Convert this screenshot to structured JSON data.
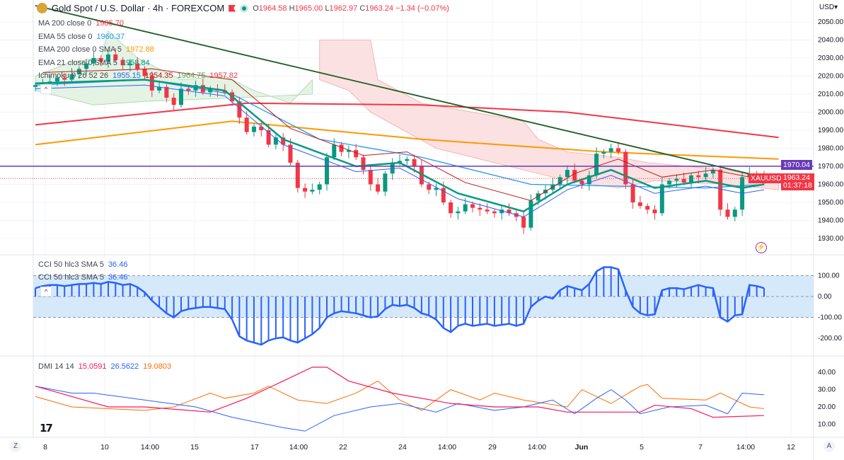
{
  "header": {
    "title": "Gold Spot / U.S. Dollar · 4h · FOREXCOM",
    "open_label": "O",
    "open": "1964.58",
    "high_label": "H",
    "high": "1965.00",
    "low_label": "L",
    "low": "1962.97",
    "close_label": "C",
    "close": "1963.24",
    "change": "−1.34 (−0.07%)",
    "currency": "USD▾"
  },
  "legend": [
    {
      "name": "MA 200 close 0",
      "value": "1985.70",
      "color": "#f23645"
    },
    {
      "name": "EMA 55 close 0",
      "value": "1960.37",
      "color": "#2196f3"
    },
    {
      "name": "EMA 200 close 0 SMA 5",
      "value": "1972.88",
      "color": "#ff9800"
    },
    {
      "name": "EMA 21 close 0 SMA 5",
      "value": "1958.84",
      "color": "#089981"
    },
    {
      "name": "Ichimoku 9 26 52 26",
      "values": [
        "1955.15",
        "1954.35",
        "1964.75",
        "1957.82"
      ],
      "colors": [
        "#2962ff",
        "#b71c1c",
        "#43a047",
        "#f23645"
      ]
    }
  ],
  "cci": {
    "label": "CCI 50 hlc3 SMA 5",
    "value": "36.46",
    "label2": "CCI 50 hlc3 SMA 5",
    "value2": "36.46",
    "color": "#2962ff",
    "band_color": "#d6e9fb",
    "axis": [
      "100.00",
      "0.00",
      "-100.00",
      "-200.00"
    ]
  },
  "dmi": {
    "label": "DMI 14 14",
    "adx": "15.0591",
    "plus": "26.5622",
    "minus": "19.0803",
    "colors": {
      "adx": "#f7175a",
      "plus": "#2962ff",
      "minus": "#ff6d00"
    },
    "axis": [
      "40.00",
      "30.00",
      "20.00",
      "10.00"
    ]
  },
  "price_axis": [
    "2050.00",
    "2040.00",
    "2030.00",
    "2020.00",
    "2010.00",
    "2000.00",
    "1990.00",
    "1980.00",
    "1970.00",
    "1960.00",
    "1950.00",
    "1940.00",
    "1930.00"
  ],
  "tags": {
    "hline": "1970.04",
    "hline_color": "#673ab7",
    "symbol": "XAUUSD",
    "last": "1963.24",
    "countdown": "01:37:18",
    "up_color": "#089981",
    "down_color": "#f23645"
  },
  "x_axis": [
    "8",
    "10",
    "14:00",
    "15",
    "17",
    "14:00",
    "22",
    "24",
    "14:00",
    "29",
    "14:00",
    "Jun",
    "5",
    "7",
    "14:00",
    "12"
  ],
  "corner": {
    "left": "Z",
    "right": "A"
  },
  "chart_data": {
    "type": "candlestick",
    "timeframe": "4h",
    "hline": 1970.04,
    "ylim": [
      1925,
      2055
    ],
    "close": [
      2015,
      2016,
      2017,
      2019,
      2018,
      2021,
      2024,
      2027,
      2030,
      2028,
      2032,
      2029,
      2026,
      2027,
      2024,
      2020,
      2012,
      2014,
      2008,
      2004,
      2013,
      2012,
      2015,
      2011,
      2013,
      2012,
      2011,
      2006,
      1997,
      1989,
      1992,
      1990,
      1982,
      1986,
      1982,
      1972,
      1958,
      1956,
      1957,
      1960,
      1975,
      1982,
      1978,
      1979,
      1975,
      1968,
      1960,
      1956,
      1966,
      1972,
      1973,
      1974,
      1970,
      1960,
      1957,
      1958,
      1950,
      1944,
      1945,
      1949,
      1947,
      1946,
      1945,
      1944,
      1946,
      1944,
      1942,
      1936,
      1951,
      1955,
      1957,
      1960,
      1964,
      1968,
      1962,
      1960,
      1965,
      1977,
      1978,
      1980,
      1978,
      1960,
      1950,
      1948,
      1946,
      1944,
      1960,
      1962,
      1963,
      1961,
      1965,
      1964,
      1966,
      1968,
      1946,
      1942,
      1946,
      1964,
      1966,
      1965,
      1963.24
    ],
    "ma200": [
      [
        0,
        1993
      ],
      [
        29,
        2005
      ],
      [
        53,
        2004
      ],
      [
        73,
        2000
      ],
      [
        102,
        1986
      ]
    ],
    "ema200": [
      [
        0,
        1982
      ],
      [
        27,
        1995
      ],
      [
        53,
        1985
      ],
      [
        78,
        1978
      ],
      [
        102,
        1974
      ]
    ],
    "ema55": [
      [
        0,
        2015
      ],
      [
        15,
        2018
      ],
      [
        27,
        2010
      ],
      [
        39,
        1985
      ],
      [
        53,
        1975
      ],
      [
        68,
        1960
      ],
      [
        92,
        1958
      ],
      [
        100,
        1960
      ]
    ],
    "ema21": [
      [
        0,
        2016
      ],
      [
        15,
        2018
      ],
      [
        26,
        2012
      ],
      [
        34,
        1985
      ],
      [
        44,
        1970
      ],
      [
        50,
        1972
      ],
      [
        58,
        1955
      ],
      [
        67,
        1945
      ],
      [
        73,
        1960
      ],
      [
        79,
        1968
      ],
      [
        85,
        1958
      ],
      [
        92,
        1962
      ],
      [
        97,
        1958
      ],
      [
        100,
        1960
      ]
    ],
    "trendline": [
      [
        0,
        2059
      ],
      [
        102,
        1962
      ]
    ],
    "cci_values": [
      40,
      50,
      55,
      55,
      50,
      55,
      60,
      60,
      65,
      60,
      70,
      65,
      55,
      60,
      45,
      20,
      -20,
      -50,
      -80,
      -100,
      -70,
      -60,
      -55,
      -50,
      -50,
      -55,
      -60,
      -110,
      -190,
      -210,
      -220,
      -230,
      -210,
      -200,
      -195,
      -210,
      -220,
      -200,
      -180,
      -150,
      -100,
      -80,
      -70,
      -75,
      -80,
      -90,
      -100,
      -95,
      -60,
      -40,
      -45,
      -40,
      -55,
      -80,
      -90,
      -110,
      -150,
      -170,
      -140,
      -130,
      -140,
      -135,
      -130,
      -140,
      -135,
      -130,
      -140,
      -130,
      -50,
      -20,
      0,
      -10,
      30,
      50,
      40,
      30,
      60,
      120,
      140,
      140,
      130,
      30,
      -50,
      -80,
      -90,
      -85,
      30,
      40,
      40,
      35,
      45,
      55,
      45,
      40,
      -100,
      -120,
      -90,
      -85,
      55,
      50,
      40
    ],
    "adx": [
      [
        0,
        32
      ],
      [
        10,
        20
      ],
      [
        15,
        20
      ],
      [
        24,
        17
      ],
      [
        29,
        25
      ],
      [
        34,
        35
      ],
      [
        38,
        43
      ],
      [
        40,
        43
      ],
      [
        43,
        35
      ],
      [
        49,
        28
      ],
      [
        57,
        22
      ],
      [
        63,
        20
      ],
      [
        69,
        20
      ],
      [
        73,
        17
      ],
      [
        83,
        17
      ],
      [
        85,
        21
      ],
      [
        90,
        19
      ],
      [
        93,
        14
      ],
      [
        100,
        15
      ]
    ],
    "di_plus": [
      [
        0,
        32
      ],
      [
        5,
        28
      ],
      [
        8,
        28
      ],
      [
        15,
        24
      ],
      [
        22,
        20
      ],
      [
        27,
        14
      ],
      [
        34,
        8
      ],
      [
        37,
        6
      ],
      [
        41,
        15
      ],
      [
        46,
        20
      ],
      [
        50,
        22
      ],
      [
        55,
        17
      ],
      [
        58,
        22
      ],
      [
        63,
        18
      ],
      [
        67,
        20
      ],
      [
        71,
        24
      ],
      [
        74,
        16
      ],
      [
        77,
        25
      ],
      [
        79,
        30
      ],
      [
        81,
        24
      ],
      [
        83,
        16
      ],
      [
        87,
        20
      ],
      [
        92,
        21
      ],
      [
        95,
        16
      ],
      [
        97,
        28
      ],
      [
        100,
        27
      ]
    ],
    "di_minus": [
      [
        0,
        26
      ],
      [
        5,
        20
      ],
      [
        15,
        18
      ],
      [
        19,
        20
      ],
      [
        24,
        28
      ],
      [
        26,
        25
      ],
      [
        30,
        28
      ],
      [
        32,
        32
      ],
      [
        36,
        24
      ],
      [
        40,
        22
      ],
      [
        44,
        28
      ],
      [
        47,
        35
      ],
      [
        50,
        24
      ],
      [
        53,
        18
      ],
      [
        57,
        30
      ],
      [
        61,
        24
      ],
      [
        63,
        28
      ],
      [
        67,
        24
      ],
      [
        73,
        20
      ],
      [
        75,
        30
      ],
      [
        79,
        22
      ],
      [
        83,
        32
      ],
      [
        84,
        33
      ],
      [
        86,
        25
      ],
      [
        92,
        24
      ],
      [
        94,
        28
      ],
      [
        98,
        20
      ],
      [
        100,
        19
      ]
    ]
  }
}
